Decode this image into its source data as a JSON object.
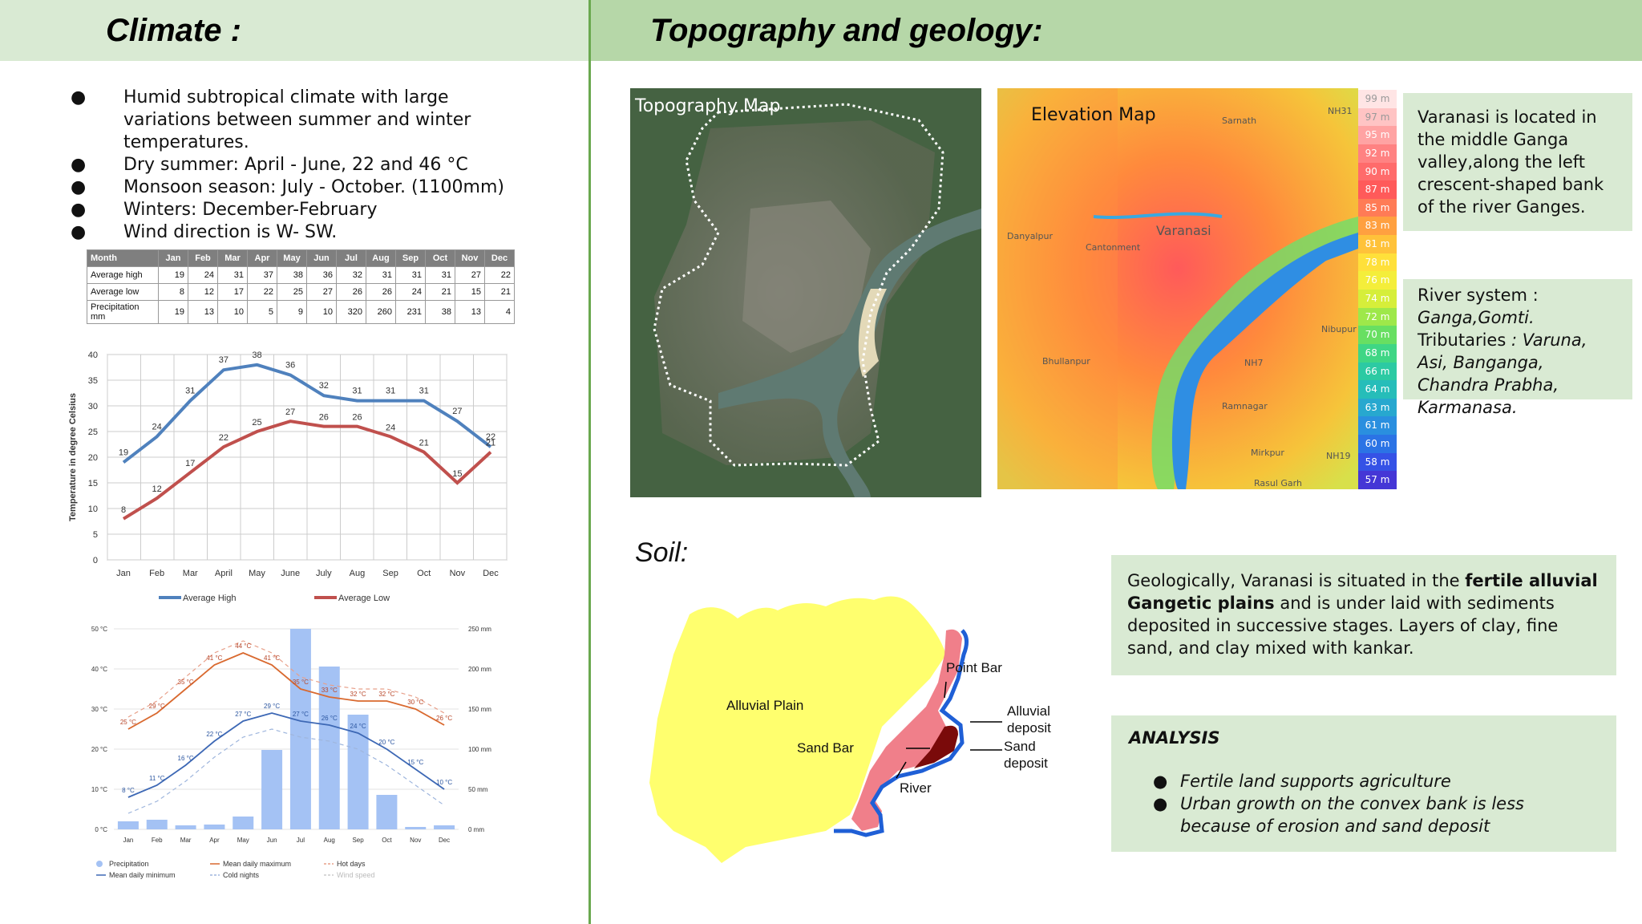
{
  "header": {
    "left_title": "Climate :",
    "right_title": "Topography and geology:"
  },
  "climate": {
    "bullets": [
      "Humid subtropical climate with large variations between summer and winter temperatures.",
      "Dry summer: April - June, 22 and 46 °C",
      "Monsoon season: July - October. (1100mm)",
      "Winters: December-February",
      "Wind direction is W- SW."
    ],
    "bullet_symbol": "●"
  },
  "climate_table": {
    "headers": [
      "Month",
      "Jan",
      "Feb",
      "Mar",
      "Apr",
      "May",
      "Jun",
      "Jul",
      "Aug",
      "Sep",
      "Oct",
      "Nov",
      "Dec"
    ],
    "rows": [
      [
        "Average high",
        "19",
        "24",
        "31",
        "37",
        "38",
        "36",
        "32",
        "31",
        "31",
        "31",
        "27",
        "22"
      ],
      [
        "Average low",
        "8",
        "12",
        "17",
        "22",
        "25",
        "27",
        "26",
        "26",
        "24",
        "21",
        "15",
        "21"
      ],
      [
        "Precipitation mm",
        "19",
        "13",
        "10",
        "5",
        "9",
        "10",
        "320",
        "260",
        "231",
        "38",
        "13",
        "4"
      ]
    ]
  },
  "chart_data": [
    {
      "type": "line",
      "categories": [
        "Jan",
        "Feb",
        "Mar",
        "April",
        "May",
        "June",
        "July",
        "Aug",
        "Sep",
        "Oct",
        "Nov",
        "Dec"
      ],
      "series": [
        {
          "name": "Average High",
          "color": "#4f81bd",
          "values": [
            19,
            24,
            31,
            37,
            38,
            36,
            32,
            31,
            31,
            31,
            27,
            22
          ]
        },
        {
          "name": "Average Low",
          "color": "#c0504d",
          "values": [
            8,
            12,
            17,
            22,
            25,
            27,
            26,
            26,
            24,
            21,
            15,
            21
          ]
        }
      ],
      "ylabel": "Temperature in degree Celsius",
      "yticks": [
        0,
        5,
        10,
        15,
        20,
        25,
        30,
        35,
        40
      ],
      "ylim": [
        0,
        40
      ],
      "grid": true,
      "legend": "bottom"
    },
    {
      "type": "bar",
      "categories": [
        "Jan",
        "Feb",
        "Mar",
        "Apr",
        "May",
        "Jun",
        "Jul",
        "Aug",
        "Sep",
        "Oct",
        "Nov",
        "Dec"
      ],
      "series": [
        {
          "name": "Precipitation",
          "color": "#a4c2f4",
          "values": [
            10,
            12,
            5,
            6,
            16,
            99,
            250,
            203,
            143,
            43,
            3,
            5
          ]
        },
        {
          "name": "Mean daily maximum",
          "color": "#d9692f",
          "values": [
            25,
            29,
            35,
            41,
            44,
            41,
            35,
            33,
            32,
            32,
            30,
            26
          ]
        },
        {
          "name": "Mean daily minimum",
          "color": "#3d68b5",
          "values": [
            8,
            11,
            16,
            22,
            27,
            29,
            27,
            26,
            24,
            20,
            15,
            10
          ]
        }
      ],
      "yleft_ticks": [
        "0 °C",
        "10 °C",
        "20 °C",
        "30 °C",
        "40 °C",
        "50 °C"
      ],
      "yright_ticks": [
        "0 mm",
        "50 mm",
        "100 mm",
        "150 mm",
        "200 mm",
        "250 mm"
      ],
      "max_labels": [
        "25 °C",
        "29 °C",
        "35 °C",
        "41 °C",
        "44 °C",
        "41 °C",
        "35 °C",
        "33 °C",
        "32 °C",
        "32 °C",
        "30 °C",
        "26 °C"
      ],
      "min_labels": [
        "8 °C",
        "11 °C",
        "16 °C",
        "22 °C",
        "27 °C",
        "29 °C",
        "27 °C",
        "26 °C",
        "24 °C",
        "20 °C",
        "15 °C",
        "10 °C"
      ],
      "legend_items": [
        "Precipitation",
        "Mean daily maximum",
        "Hot days",
        "Mean daily minimum",
        "Cold nights",
        "Wind speed"
      ],
      "legend": "bottom"
    }
  ],
  "topography": {
    "map_label": "Topography Map",
    "elevation_label": "Elevation Map",
    "place_labels": [
      "Varanasi",
      "Cantonment",
      "Sarnath",
      "Danyalpur",
      "Bhullanpur",
      "Ramnagar",
      "Nibupur",
      "Mirkpur",
      "Rasul Garh",
      "NH7",
      "NH19",
      "NH31"
    ],
    "legend_values": [
      "99 m",
      "97 m",
      "95 m",
      "92 m",
      "90 m",
      "87 m",
      "85 m",
      "83 m",
      "81 m",
      "78 m",
      "76 m",
      "74 m",
      "72 m",
      "70 m",
      "68 m",
      "66 m",
      "64 m",
      "63 m",
      "61 m",
      "60 m",
      "58 m",
      "57 m"
    ],
    "legend_colors": [
      "#ffe5e5",
      "#ffc4c4",
      "#ffa3a3",
      "#ff8282",
      "#ff6b6b",
      "#ff5a5a",
      "#ff7b56",
      "#ffa040",
      "#ffc23a",
      "#ffe03a",
      "#f4ee3a",
      "#d6ee3a",
      "#9ee84a",
      "#68df62",
      "#3fd685",
      "#2ccaa3",
      "#26bdb9",
      "#27a8cf",
      "#2a8fdf",
      "#2b73e5",
      "#3552e6",
      "#4536d6"
    ],
    "location_text": "Varanasi is located in the middle Ganga valley,along the left crescent-shaped bank of the river Ganges.",
    "river_title": "River system :",
    "river_main": "Ganga,Gomti.",
    "tributaries_label": "Tributaries",
    "tributaries_value": ": Varuna, Asi, Banganga, Chandra Prabha, Karmanasa."
  },
  "soil": {
    "title": "Soil:",
    "labels": {
      "alluvial_plain": "Alluvial Plain",
      "point_bar": "Point Bar",
      "sand_bar": "Sand Bar",
      "river": "River",
      "alluvial_deposit": "Alluvial deposit",
      "sand_deposit": "Sand deposit"
    },
    "geology_text_1": "Geologically, Varanasi is situated in the ",
    "geology_bold_1": "fertile alluvial Gangetic plains",
    "geology_text_2": " and is under laid with sediments deposited in successive stages. Layers of clay, fine sand, and clay mixed with kankar."
  },
  "analysis": {
    "title": "ANALYSIS",
    "items": [
      "Fertile land supports agriculture",
      "Urban growth on the convex bank is less because of erosion and sand deposit"
    ]
  }
}
